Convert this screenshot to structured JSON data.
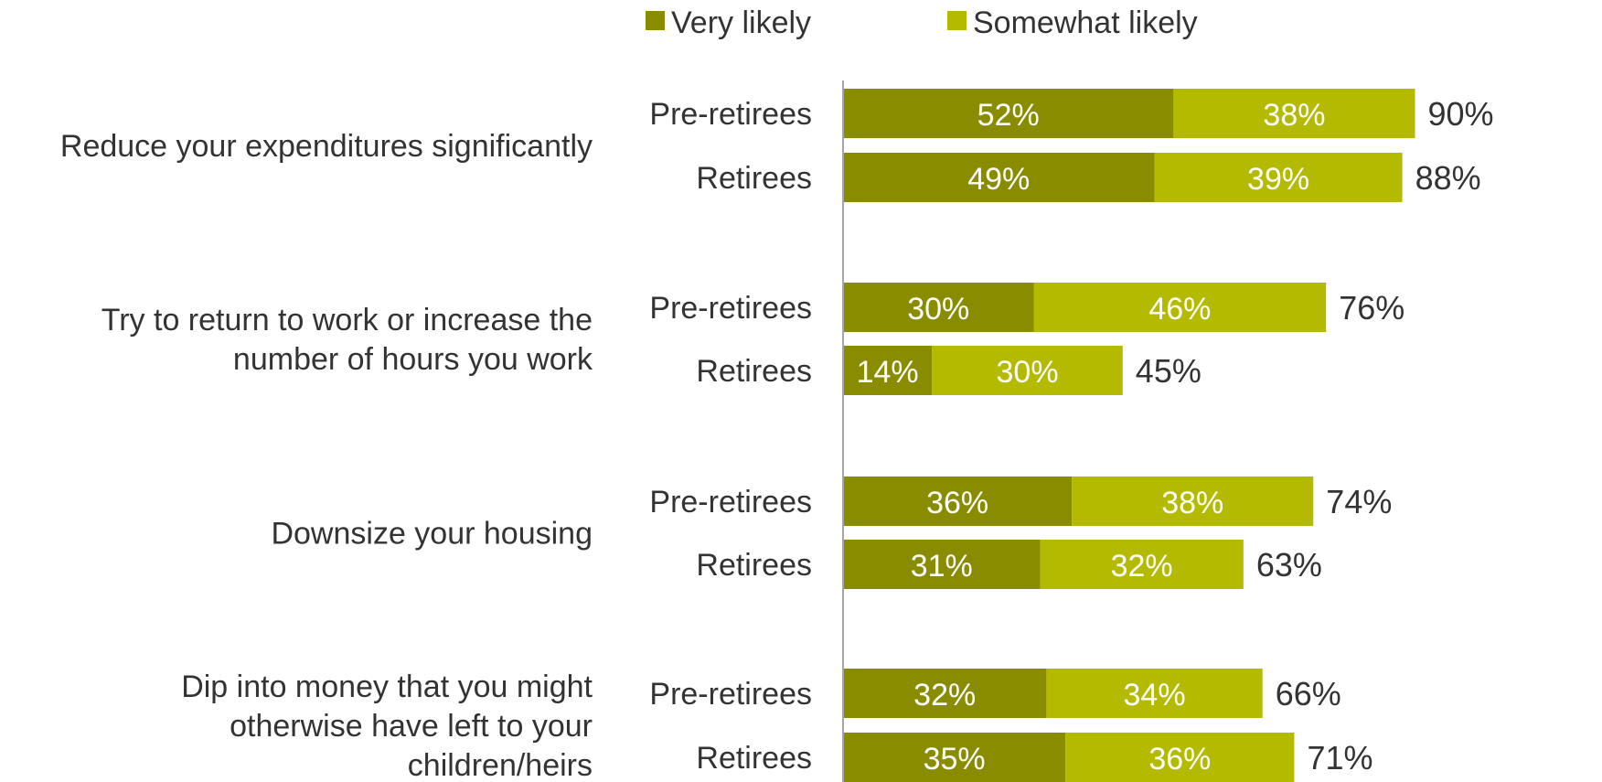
{
  "chart_data": {
    "type": "bar",
    "orientation": "horizontal",
    "stacked": true,
    "legend_placement": "top",
    "series": [
      {
        "name": "Very likely",
        "color": "#8a8c00"
      },
      {
        "name": "Somewhat likely",
        "color": "#b4ba00"
      }
    ],
    "groups": [
      {
        "label": [
          "Reduce your expenditures significantly"
        ],
        "rows": [
          {
            "label": "Pre-retirees",
            "values": [
              52,
              38
            ],
            "value_labels": [
              "52%",
              "38%"
            ],
            "total_label": "90%"
          },
          {
            "label": "Retirees",
            "values": [
              49,
              39
            ],
            "value_labels": [
              "49%",
              "39%"
            ],
            "total_label": "88%"
          }
        ]
      },
      {
        "label": [
          "Try to return to work or increase the",
          "number of hours you work"
        ],
        "rows": [
          {
            "label": "Pre-retirees",
            "values": [
              30,
              46
            ],
            "value_labels": [
              "30%",
              "46%"
            ],
            "total_label": "76%"
          },
          {
            "label": "Retirees",
            "values": [
              14,
              30
            ],
            "value_labels": [
              "14%",
              "30%"
            ],
            "total_label": "45%"
          }
        ]
      },
      {
        "label": [
          "Downsize your housing"
        ],
        "rows": [
          {
            "label": "Pre-retirees",
            "values": [
              36,
              38
            ],
            "value_labels": [
              "36%",
              "38%"
            ],
            "total_label": "74%"
          },
          {
            "label": "Retirees",
            "values": [
              31,
              32
            ],
            "value_labels": [
              "31%",
              "32%"
            ],
            "total_label": "63%"
          }
        ]
      },
      {
        "label": [
          "Dip into money that you might",
          "otherwise have left to your",
          "children/heirs"
        ],
        "rows": [
          {
            "label": "Pre-retirees",
            "values": [
              32,
              34
            ],
            "value_labels": [
              "32%",
              "34%"
            ],
            "total_label": "66%"
          },
          {
            "label": "Retirees",
            "values": [
              35,
              36
            ],
            "value_labels": [
              "35%",
              "36%"
            ],
            "total_label": "71%"
          }
        ]
      }
    ],
    "xlim": [
      0,
      100
    ],
    "axis_color": "#a6a6a6",
    "grid": false
  }
}
